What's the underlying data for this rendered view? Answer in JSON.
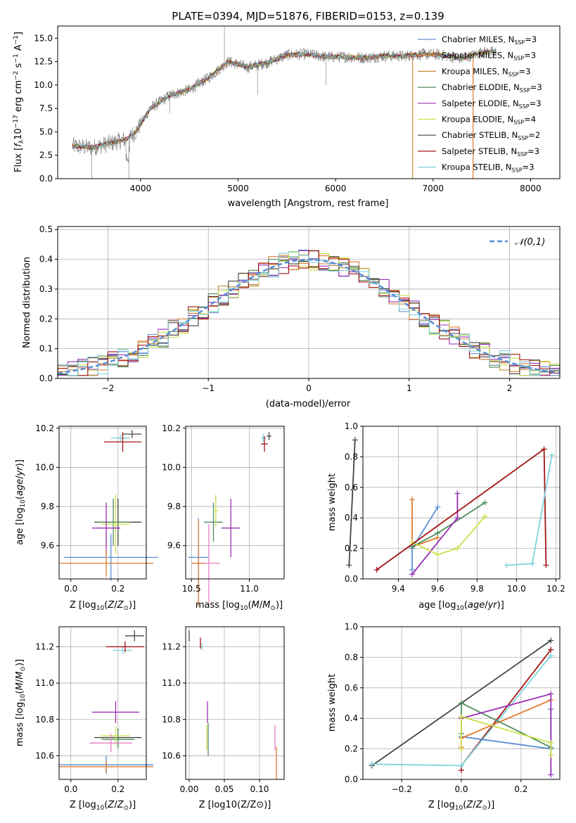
{
  "chart_data": [
    {
      "id": "spectrum",
      "type": "line",
      "title": "PLATE=0394, MJD=51876, FIBERID=0153, z=0.139",
      "xlabel": "wavelength [Angstrom, rest frame]",
      "ylabel": "Flux [f_λ 10^-17 erg cm^-2 s^-1 A^-1]",
      "xlim": [
        3150,
        8300
      ],
      "ylim": [
        0,
        16.3
      ],
      "xticks": [
        "4000",
        "5000",
        "6000",
        "7000",
        "8000"
      ],
      "yticks": [
        "0.0",
        "2.5",
        "5.0",
        "7.5",
        "10.0",
        "12.5",
        "15.0"
      ],
      "grid": false,
      "legend_position": "right",
      "x": [
        3300,
        3500,
        3700,
        3850,
        3950,
        4100,
        4300,
        4500,
        4700,
        4900,
        5100,
        5300,
        5500,
        5700,
        5900,
        6100,
        6300,
        6500,
        6700,
        6900,
        7100,
        7300,
        7500
      ],
      "y": [
        3.5,
        3.3,
        3.8,
        4.2,
        5.0,
        7.5,
        8.9,
        9.5,
        10.8,
        12.5,
        11.9,
        12.4,
        13.2,
        13.3,
        13.0,
        13.0,
        12.9,
        13.1,
        13.1,
        13.3,
        13.2,
        12.8,
        13.5
      ],
      "series": [
        {
          "name": "Chabrier MILES, N_SSP=3",
          "label_base": "Chabrier MILES, N",
          "label_sub": "SSP",
          "label_tail": "=3",
          "color": "#6a8fd4"
        },
        {
          "name": "Salpeter MILES, N_SSP=3",
          "label_base": "Salpeter MILES, N",
          "label_sub": "SSP",
          "label_tail": "=3",
          "color": "#e07a2e"
        },
        {
          "name": "Kroupa MILES, N_SSP=3",
          "label_base": "Kroupa MILES, N",
          "label_sub": "SSP",
          "label_tail": "=3",
          "color": "#c8893a"
        },
        {
          "name": "Chabrier ELODIE, N_SSP=3",
          "label_base": "Chabrier ELODIE, N",
          "label_sub": "SSP",
          "label_tail": "=3",
          "color": "#4f8c5c"
        },
        {
          "name": "Salpeter ELODIE, N_SSP=3",
          "label_base": "Salpeter ELODIE, N",
          "label_sub": "SSP",
          "label_tail": "=3",
          "color": "#9b30b5"
        },
        {
          "name": "Kroupa ELODIE, N_SSP=4",
          "label_base": "Kroupa ELODIE, N",
          "label_sub": "SSP",
          "label_tail": "=4",
          "color": "#cde04a"
        },
        {
          "name": "Chabrier STELIB, N_SSP=2",
          "label_base": "Chabrier STELIB, N",
          "label_sub": "SSP",
          "label_tail": "=2",
          "color": "#444444"
        },
        {
          "name": "Salpeter STELIB, N_SSP=3",
          "label_base": "Salpeter STELIB, N",
          "label_sub": "SSP",
          "label_tail": "=3",
          "color": "#a31515"
        },
        {
          "name": "Kroupa STELIB, N_SSP=3",
          "label_base": "Kroupa STELIB, N",
          "label_sub": "SSP",
          "label_tail": "=3",
          "color": "#7fd3dc"
        }
      ]
    },
    {
      "id": "residuals",
      "type": "bar",
      "xlabel": "(data-model)/error",
      "ylabel": "Normed distribution",
      "xlim": [
        -2.5,
        2.5
      ],
      "ylim": [
        0,
        0.51
      ],
      "xticks": [
        -2,
        -1,
        0,
        1,
        2
      ],
      "yticks": [
        "0.0",
        "0.1",
        "0.2",
        "0.3",
        "0.4",
        "0.5"
      ],
      "grid": true,
      "legend_position": "top-right",
      "reference": {
        "name": "𝒩(0,1)",
        "mean": 0,
        "sd": 1,
        "color": "#5a8ed6"
      }
    },
    {
      "id": "age_vs_Z",
      "type": "scatter",
      "xlabel": "Z [log10(Z/Z⊙)]",
      "ylabel": "age [log10(age/yr)]",
      "xlim": [
        -0.05,
        0.32
      ],
      "ylim": [
        9.43,
        10.21
      ],
      "xticks": [
        0.0,
        0.2
      ],
      "yticks": [
        9.6,
        9.8,
        10.0,
        10.2
      ],
      "grid": true,
      "points": [
        {
          "x": 0.26,
          "y": 10.17,
          "xerr": 0.04,
          "yerr": 0.02,
          "color": "#444444"
        },
        {
          "x": 0.21,
          "y": 10.15,
          "xerr": 0.04,
          "yerr": 0.02,
          "color": "#7fd3dc"
        },
        {
          "x": 0.22,
          "y": 10.13,
          "xerr": 0.08,
          "yerr": 0.05,
          "color": "#a31515"
        },
        {
          "x": 0.2,
          "y": 9.72,
          "xerr": 0.1,
          "yerr": 0.12,
          "color": "#444444"
        },
        {
          "x": 0.18,
          "y": 9.72,
          "xerr": 0.07,
          "yerr": 0.12,
          "color": "#4f8c5c"
        },
        {
          "x": 0.19,
          "y": 9.71,
          "xerr": 0.06,
          "yerr": 0.15,
          "color": "#cde04a"
        },
        {
          "x": 0.15,
          "y": 9.69,
          "xerr": 0.06,
          "yerr": 0.13,
          "color": "#9b30b5"
        },
        {
          "x": 0.17,
          "y": 9.54,
          "xerr": 0.2,
          "yerr": 0.12,
          "color": "#5a8ed6"
        },
        {
          "x": 0.15,
          "y": 9.51,
          "xerr": 0.2,
          "yerr": 0.07,
          "color": "#e07a2e"
        }
      ]
    },
    {
      "id": "age_vs_mass",
      "type": "scatter",
      "xlabel": "mass [log10(M/M⊙)]",
      "ylabel": "",
      "xlim": [
        10.45,
        11.3
      ],
      "ylim": [
        9.43,
        10.21
      ],
      "xticks": [
        10.5,
        11.0
      ],
      "yticks": [
        9.6,
        9.8,
        10.0,
        10.2
      ],
      "grid": true,
      "points": [
        {
          "x": 11.17,
          "y": 10.16,
          "xerr": 0.02,
          "yerr": 0.02,
          "color": "#444444"
        },
        {
          "x": 11.12,
          "y": 10.15,
          "xerr": 0.02,
          "yerr": 0.02,
          "color": "#7fd3dc"
        },
        {
          "x": 11.13,
          "y": 10.12,
          "xerr": 0.03,
          "yerr": 0.04,
          "color": "#a31515"
        },
        {
          "x": 10.69,
          "y": 9.72,
          "xerr": 0.08,
          "yerr": 0.1,
          "color": "#4f8c5c"
        },
        {
          "x": 10.71,
          "y": 9.78,
          "xerr": 0.02,
          "yerr": 0.08,
          "color": "#cde04a"
        },
        {
          "x": 10.84,
          "y": 9.69,
          "xerr": 0.08,
          "yerr": 0.15,
          "color": "#9b30b5"
        },
        {
          "x": 10.56,
          "y": 9.54,
          "xerr": 0.09,
          "yerr": 0.2,
          "color": "#5a8ed6"
        },
        {
          "x": 10.65,
          "y": 9.51,
          "xerr": 0.1,
          "yerr": 0.2,
          "color": "#e87ec5"
        },
        {
          "x": 10.56,
          "y": 9.51,
          "xerr": 0.06,
          "yerr": 0.22,
          "color": "#e07a2e"
        }
      ]
    },
    {
      "id": "weight_vs_age",
      "type": "line",
      "xlabel": "age [log10(age/yr)]",
      "ylabel": "mass weight",
      "xlim": [
        9.22,
        10.22
      ],
      "ylim": [
        0,
        1.0
      ],
      "xticks": [
        9.4,
        9.6,
        9.8,
        10.0,
        10.2
      ],
      "yticks": [
        0.0,
        0.2,
        0.4,
        0.6,
        0.8,
        1.0
      ],
      "grid": true,
      "series": [
        {
          "color": "#5a8ed6",
          "x": [
            9.47,
            9.47,
            9.6
          ],
          "y": [
            0.06,
            0.2,
            0.47
          ]
        },
        {
          "color": "#e07a2e",
          "x": [
            9.47,
            9.47,
            9.6
          ],
          "y": [
            0.52,
            0.21,
            0.27
          ]
        },
        {
          "color": "#4f8c5c",
          "x": [
            9.47,
            9.6,
            9.84
          ],
          "y": [
            0.21,
            0.3,
            0.5
          ]
        },
        {
          "color": "#9b30b5",
          "x": [
            9.47,
            9.7,
            9.7
          ],
          "y": [
            0.03,
            0.4,
            0.56
          ]
        },
        {
          "color": "#cde04a",
          "x": [
            9.47,
            9.6,
            9.7,
            9.84
          ],
          "y": [
            0.24,
            0.16,
            0.2,
            0.41
          ]
        },
        {
          "color": "#444444",
          "x": [
            9.15,
            9.18
          ],
          "y": [
            0.09,
            0.91
          ]
        },
        {
          "color": "#a31515",
          "x": [
            9.29,
            10.14,
            10.15
          ],
          "y": [
            0.06,
            0.85,
            0.09
          ]
        },
        {
          "color": "#7fd3dc",
          "x": [
            9.95,
            10.08,
            10.18
          ],
          "y": [
            0.09,
            0.1,
            0.81
          ]
        }
      ]
    },
    {
      "id": "mass_vs_Z",
      "type": "scatter",
      "xlabel": "Z [log10(Z/Z⊙)]",
      "ylabel": "mass [log10(M/M⊙)]",
      "xlim": [
        -0.05,
        0.32
      ],
      "ylim": [
        10.47,
        11.31
      ],
      "xticks": [
        0.0,
        0.2
      ],
      "yticks": [
        10.6,
        10.8,
        11.0,
        11.2
      ],
      "grid": true,
      "points": [
        {
          "x": 0.27,
          "y": 11.26,
          "xerr": 0.04,
          "yerr": 0.03,
          "color": "#444444"
        },
        {
          "x": 0.22,
          "y": 11.18,
          "xerr": 0.04,
          "yerr": 0.02,
          "color": "#7fd3dc"
        },
        {
          "x": 0.23,
          "y": 11.2,
          "xerr": 0.08,
          "yerr": 0.03,
          "color": "#a31515"
        },
        {
          "x": 0.19,
          "y": 10.84,
          "xerr": 0.1,
          "yerr": 0.06,
          "color": "#9b30b5"
        },
        {
          "x": 0.2,
          "y": 10.7,
          "xerr": 0.1,
          "yerr": 0.05,
          "color": "#444444"
        },
        {
          "x": 0.2,
          "y": 10.69,
          "xerr": 0.07,
          "yerr": 0.05,
          "color": "#4f8c5c"
        },
        {
          "x": 0.19,
          "y": 10.71,
          "xerr": 0.06,
          "yerr": 0.05,
          "color": "#cde04a"
        },
        {
          "x": 0.17,
          "y": 10.67,
          "xerr": 0.09,
          "yerr": 0.05,
          "color": "#e87ec5"
        },
        {
          "x": 0.15,
          "y": 10.55,
          "xerr": 0.2,
          "yerr": 0.05,
          "color": "#5a8ed6"
        },
        {
          "x": 0.15,
          "y": 10.54,
          "xerr": 0.2,
          "yerr": 0.03,
          "color": "#e07a2e"
        }
      ]
    },
    {
      "id": "mass_vs_ebv",
      "type": "scatter",
      "xlabel": "E(B-V)",
      "ylabel": "",
      "xlim": [
        -0.005,
        0.135
      ],
      "ylim": [
        10.47,
        11.31
      ],
      "xticks": [
        "0.00",
        "0.05",
        "0.10"
      ],
      "yticks": [
        10.6,
        10.8,
        11.0,
        11.2
      ],
      "grid": true,
      "points": [
        {
          "x": 0.0,
          "y": 11.26,
          "xerr": 0,
          "yerr": 0.03,
          "color": "#444444"
        },
        {
          "x": 0.016,
          "y": 11.22,
          "xerr": 0,
          "yerr": 0.03,
          "color": "#a31515"
        },
        {
          "x": 0.018,
          "y": 11.2,
          "xerr": 0,
          "yerr": 0.02,
          "color": "#7fd3dc"
        },
        {
          "x": 0.026,
          "y": 10.84,
          "xerr": 0,
          "yerr": 0.06,
          "color": "#9b30b5"
        },
        {
          "x": 0.025,
          "y": 10.7,
          "xerr": 0,
          "yerr": 0.07,
          "color": "#cde04a"
        },
        {
          "x": 0.027,
          "y": 10.69,
          "xerr": 0,
          "yerr": 0.09,
          "color": "#4f8c5c"
        },
        {
          "x": 0.122,
          "y": 10.7,
          "xerr": 0,
          "yerr": 0.07,
          "color": "#e87ec5"
        },
        {
          "x": 0.124,
          "y": 10.56,
          "xerr": 0,
          "yerr": 0.09,
          "color": "#e07a2e"
        }
      ]
    },
    {
      "id": "weight_vs_Z",
      "type": "line",
      "xlabel": "Z [log10(Z/Z⊙)]",
      "ylabel": "mass weight",
      "xlim": [
        -0.33,
        0.33
      ],
      "ylim": [
        0,
        1.0
      ],
      "xticks": [
        -0.2,
        0.0,
        0.2
      ],
      "yticks": [
        0.0,
        0.2,
        0.4,
        0.6,
        0.8,
        1.0
      ],
      "grid": true,
      "series": [
        {
          "color": "#444444",
          "x": [
            -0.3,
            0.3
          ],
          "y": [
            0.09,
            0.91
          ]
        },
        {
          "color": "#a31515",
          "x": [
            0.0,
            0.0,
            0.3
          ],
          "y": [
            0.06,
            0.09,
            0.85
          ]
        },
        {
          "color": "#7fd3dc",
          "x": [
            -0.3,
            0.0,
            0.3
          ],
          "y": [
            0.1,
            0.09,
            0.81
          ]
        },
        {
          "color": "#5a8ed6",
          "x": [
            0.0,
            0.0,
            0.3,
            0.3
          ],
          "y": [
            0.41,
            0.28,
            0.2,
            0.46
          ]
        },
        {
          "color": "#e07a2e",
          "x": [
            0.0,
            0.0,
            0.3
          ],
          "y": [
            0.21,
            0.27,
            0.52
          ]
        },
        {
          "color": "#4f8c5c",
          "x": [
            0.0,
            0.0,
            0.3
          ],
          "y": [
            0.3,
            0.5,
            0.21
          ]
        },
        {
          "color": "#9b30b5",
          "x": [
            0.0,
            0.3,
            0.3
          ],
          "y": [
            0.4,
            0.56,
            0.03
          ]
        },
        {
          "color": "#cde04a",
          "x": [
            0.0,
            0.0,
            0.3,
            0.3
          ],
          "y": [
            0.2,
            0.41,
            0.24,
            0.16
          ]
        }
      ]
    }
  ]
}
